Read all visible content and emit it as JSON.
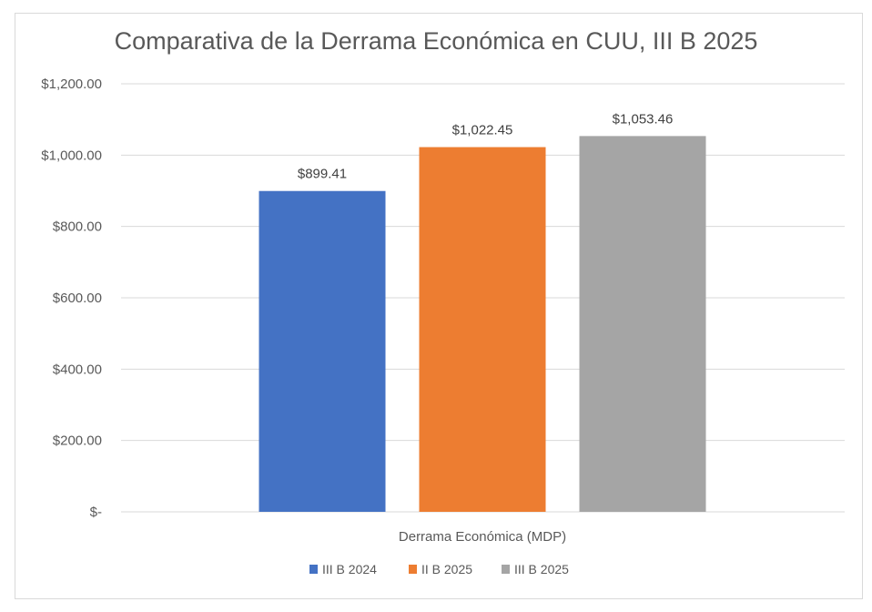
{
  "chart_data": {
    "type": "bar",
    "title": "Comparativa de la Derrama Económica en CUU, III B 2025",
    "categories": [
      "Derrama Económica (MDP)"
    ],
    "xlabel": "",
    "ylabel": "",
    "ylim": [
      0,
      1200
    ],
    "yticks": [
      0,
      200,
      400,
      600,
      800,
      1000,
      1200
    ],
    "ytick_labels": [
      "$-",
      "$200.00",
      "$400.00",
      "$600.00",
      "$800.00",
      "$1,000.00",
      "$1,200.00"
    ],
    "grid": true,
    "legend_position": "bottom",
    "series": [
      {
        "name": "III B 2024",
        "values": [
          899.41
        ],
        "label": "$899.41",
        "color": "#4472C4"
      },
      {
        "name": "II B 2025",
        "values": [
          1022.45
        ],
        "label": "$1,022.45",
        "color": "#ED7D31"
      },
      {
        "name": "III B 2025",
        "values": [
          1053.46
        ],
        "label": "$1,053.46",
        "color": "#A5A5A5"
      }
    ]
  }
}
